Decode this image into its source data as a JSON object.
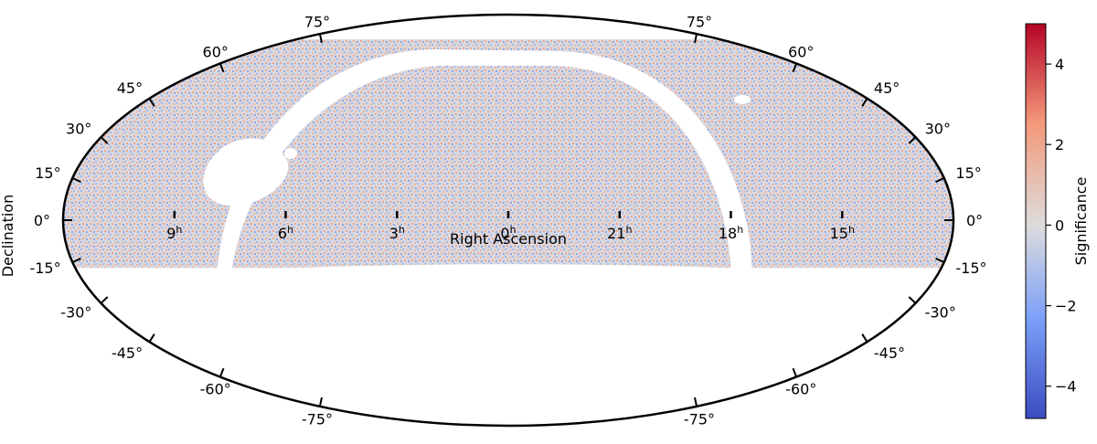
{
  "chart_data": {
    "type": "heatmap",
    "projection": "mollweide",
    "title": "",
    "xlabel": "Right Ascension",
    "ylabel": "Declination",
    "ra_ticks": [
      {
        "ra_hours": 9,
        "label": "9",
        "sup": "h"
      },
      {
        "ra_hours": 6,
        "label": "6",
        "sup": "h"
      },
      {
        "ra_hours": 3,
        "label": "3",
        "sup": "h"
      },
      {
        "ra_hours": 0,
        "label": "0",
        "sup": "h"
      },
      {
        "ra_hours": 21,
        "label": "21",
        "sup": "h"
      },
      {
        "ra_hours": 18,
        "label": "18",
        "sup": "h"
      },
      {
        "ra_hours": 15,
        "label": "15",
        "sup": "h"
      }
    ],
    "dec_ticks": [
      {
        "dec": 75,
        "label": "75°"
      },
      {
        "dec": 60,
        "label": "60°"
      },
      {
        "dec": 45,
        "label": "45°"
      },
      {
        "dec": 30,
        "label": "30°"
      },
      {
        "dec": 15,
        "label": "15°"
      },
      {
        "dec": 0,
        "label": "0°"
      },
      {
        "dec": -15,
        "label": "-15°"
      },
      {
        "dec": -30,
        "label": "-30°"
      },
      {
        "dec": -45,
        "label": "-45°"
      },
      {
        "dec": -60,
        "label": "-60°"
      },
      {
        "dec": -75,
        "label": "-75°"
      }
    ],
    "colorbar": {
      "label": "Significance",
      "cmap": "coolwarm",
      "range": [
        -4.8,
        5.0
      ],
      "ticks": [
        {
          "value": 4,
          "label": "4"
        },
        {
          "value": 2,
          "label": "2"
        },
        {
          "value": 0,
          "label": "0"
        },
        {
          "value": -2,
          "label": "−2"
        },
        {
          "value": -4,
          "label": "−4"
        }
      ]
    },
    "coverage": {
      "dec_min": -17,
      "dec_max": 72
    }
  }
}
